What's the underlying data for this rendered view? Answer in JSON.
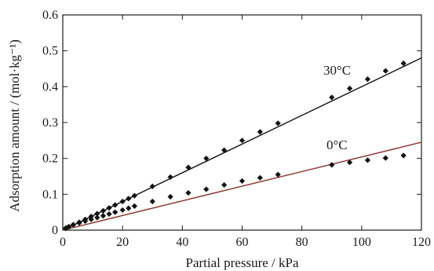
{
  "chart_data": {
    "type": "scatter",
    "xlabel": "Partial pressure / kPa",
    "ylabel": "Adsorption amount / (mol·kg⁻¹)",
    "xlim": [
      0,
      120
    ],
    "ylim": [
      0,
      0.6
    ],
    "xticks": [
      "0",
      "20",
      "40",
      "60",
      "80",
      "100",
      "120"
    ],
    "yticks": [
      "0",
      "0.1",
      "0.2",
      "0.3",
      "0.4",
      "0.5",
      "0.6"
    ],
    "grid": false,
    "series": [
      {
        "name": "30°C",
        "marker": "diamond",
        "color": "#111111",
        "points": [
          [
            1,
            0.005
          ],
          [
            2,
            0.009
          ],
          [
            3.5,
            0.015
          ],
          [
            5.5,
            0.022
          ],
          [
            7.5,
            0.03
          ],
          [
            9.5,
            0.038
          ],
          [
            11.5,
            0.046
          ],
          [
            13.5,
            0.054
          ],
          [
            15.5,
            0.062
          ],
          [
            17.5,
            0.07
          ],
          [
            20,
            0.08
          ],
          [
            22,
            0.088
          ],
          [
            24,
            0.096
          ],
          [
            30,
            0.122
          ],
          [
            36,
            0.148
          ],
          [
            42,
            0.175
          ],
          [
            48,
            0.2
          ],
          [
            54,
            0.223
          ],
          [
            60,
            0.25
          ],
          [
            66,
            0.274
          ],
          [
            72,
            0.298
          ],
          [
            90,
            0.37
          ],
          [
            96,
            0.395
          ],
          [
            102,
            0.421
          ],
          [
            108,
            0.444
          ],
          [
            114,
            0.465
          ]
        ],
        "fit": {
          "x": [
            0,
            120
          ],
          "y": [
            0,
            0.48
          ],
          "color": "#111111"
        }
      },
      {
        "name": "0°C",
        "marker": "diamond",
        "color": "#111111",
        "points": [
          [
            1,
            0.006
          ],
          [
            2,
            0.01
          ],
          [
            3.5,
            0.015
          ],
          [
            5.5,
            0.02
          ],
          [
            7.5,
            0.025
          ],
          [
            9.5,
            0.03
          ],
          [
            11.5,
            0.035
          ],
          [
            13.5,
            0.04
          ],
          [
            15.5,
            0.045
          ],
          [
            17.5,
            0.05
          ],
          [
            20,
            0.056
          ],
          [
            22,
            0.061
          ],
          [
            24,
            0.067
          ],
          [
            30,
            0.08
          ],
          [
            36,
            0.093
          ],
          [
            42,
            0.104
          ],
          [
            48,
            0.114
          ],
          [
            54,
            0.126
          ],
          [
            60,
            0.137
          ],
          [
            66,
            0.146
          ],
          [
            72,
            0.155
          ],
          [
            90,
            0.182
          ],
          [
            96,
            0.189
          ],
          [
            102,
            0.195
          ],
          [
            108,
            0.201
          ],
          [
            114,
            0.208
          ]
        ],
        "fit": {
          "x": [
            0,
            120
          ],
          "y": [
            0,
            0.245
          ],
          "color": "#8b2f2a"
        }
      }
    ]
  }
}
